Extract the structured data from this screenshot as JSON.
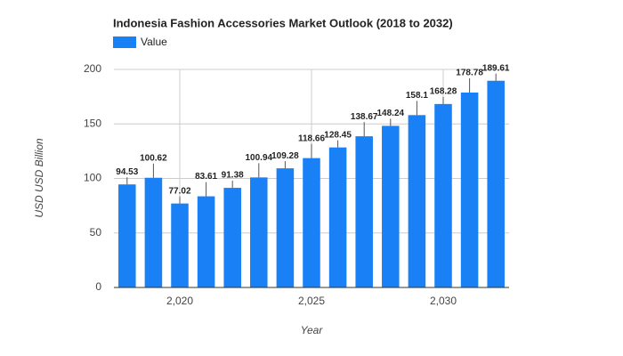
{
  "chart_data": {
    "type": "bar",
    "title": "Indonesia Fashion Accessories Market Outlook (2018 to 2032)",
    "x_label": "Year",
    "y_label": "USD USD Billion",
    "x": [
      2018,
      2019,
      2020,
      2021,
      2022,
      2023,
      2024,
      2025,
      2026,
      2027,
      2028,
      2029,
      2030,
      2031,
      2032
    ],
    "series": [
      {
        "name": "Value",
        "color": "#1a80f5",
        "values": [
          94.53,
          100.62,
          77.02,
          83.61,
          91.38,
          100.94,
          109.28,
          118.66,
          128.45,
          138.67,
          148.24,
          158.1,
          168.28,
          178.78,
          189.61
        ]
      }
    ],
    "xlim": [
      2017.5,
      2032.5
    ],
    "xticks": [
      {
        "value": 2020,
        "label": "2,020"
      },
      {
        "value": 2025,
        "label": "2,025"
      },
      {
        "value": 2030,
        "label": "2,030"
      }
    ],
    "ylim": [
      0,
      200
    ],
    "yticks": [
      0,
      50,
      100,
      150,
      200
    ],
    "grid": true,
    "legend": "top-left"
  }
}
